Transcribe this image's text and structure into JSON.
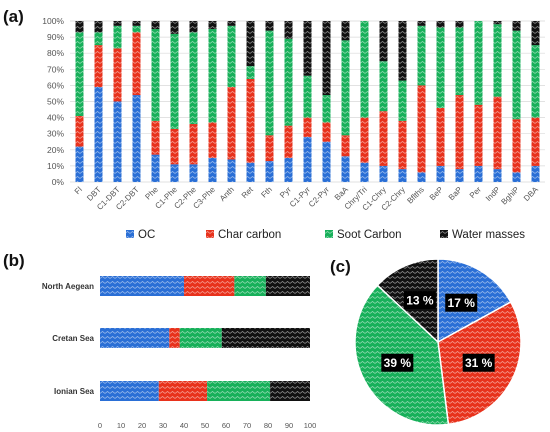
{
  "panels": {
    "a": "(a)",
    "b": "(b)",
    "c": "(c)"
  },
  "colors": {
    "OC": "#2a6fd6",
    "Char carbon": "#e8321c",
    "Soot Carbon": "#17b05a",
    "Water masses": "#111111"
  },
  "legend": {
    "labels": [
      "OC",
      "Char carbon",
      "Soot Carbon",
      "Water masses"
    ],
    "placement": "bottom"
  },
  "chart_data": [
    {
      "id": "a",
      "type": "bar",
      "stacked": true,
      "orientation": "vertical",
      "normalized": true,
      "ylim": [
        0,
        100
      ],
      "yticks": [
        "0%",
        "10%",
        "20%",
        "30%",
        "40%",
        "50%",
        "60%",
        "70%",
        "80%",
        "90%",
        "100%"
      ],
      "grid": true,
      "categories": [
        "Fl",
        "DBT",
        "C1-DBT",
        "C2-DBT",
        "Phe",
        "C1-Phe",
        "C2-Phe",
        "C3-Phe",
        "Anth",
        "Ret",
        "Fth",
        "Pyr",
        "C1-Pyr",
        "C2-Pyr",
        "BaA",
        "Chry/Tri",
        "C1-Chry",
        "C2-Chry",
        "Bflths",
        "BeP",
        "BaP",
        "Per",
        "IndP",
        "BghiP",
        "DBA"
      ],
      "series": [
        {
          "name": "OC",
          "values": [
            22,
            59,
            50,
            54,
            17,
            11,
            11,
            15,
            14,
            12,
            13,
            15,
            28,
            25,
            16,
            12,
            10,
            8,
            6,
            10,
            8,
            10,
            8,
            6,
            10
          ]
        },
        {
          "name": "Char carbon",
          "values": [
            19,
            26,
            33,
            39,
            21,
            22,
            25,
            22,
            45,
            52,
            16,
            20,
            12,
            12,
            13,
            28,
            34,
            30,
            54,
            36,
            46,
            38,
            45,
            33,
            30
          ]
        },
        {
          "name": "Soot Carbon",
          "values": [
            52,
            8,
            14,
            4,
            57,
            59,
            57,
            58,
            38,
            8,
            65,
            54,
            26,
            17,
            59,
            60,
            31,
            25,
            37,
            50,
            42,
            52,
            45,
            55,
            45
          ]
        },
        {
          "name": "Water masses",
          "values": [
            7,
            7,
            3,
            3,
            5,
            8,
            7,
            5,
            3,
            28,
            6,
            11,
            34,
            46,
            12,
            0,
            25,
            37,
            3,
            4,
            4,
            0,
            2,
            6,
            15
          ]
        }
      ]
    },
    {
      "id": "b",
      "type": "bar",
      "stacked": true,
      "orientation": "horizontal",
      "xlim": [
        0,
        100
      ],
      "xticks": [
        "0",
        "10",
        "20",
        "30",
        "40",
        "50",
        "60",
        "70",
        "80",
        "90",
        "100"
      ],
      "categories": [
        "North Aegean",
        "Cretan Sea",
        "Ionian Sea"
      ],
      "series": [
        {
          "name": "OC",
          "values": [
            40,
            33,
            28
          ]
        },
        {
          "name": "Char carbon",
          "values": [
            24,
            5,
            23
          ]
        },
        {
          "name": "Soot Carbon",
          "values": [
            15,
            20,
            30
          ]
        },
        {
          "name": "Water masses",
          "values": [
            21,
            42,
            19
          ]
        }
      ]
    },
    {
      "id": "c",
      "type": "pie",
      "slices": [
        {
          "name": "OC",
          "value": 17,
          "label": "17 %"
        },
        {
          "name": "Char carbon",
          "value": 31,
          "label": "31 %"
        },
        {
          "name": "Soot Carbon",
          "value": 39,
          "label": "39 %"
        },
        {
          "name": "Water masses",
          "value": 13,
          "label": "13 %"
        }
      ]
    }
  ]
}
